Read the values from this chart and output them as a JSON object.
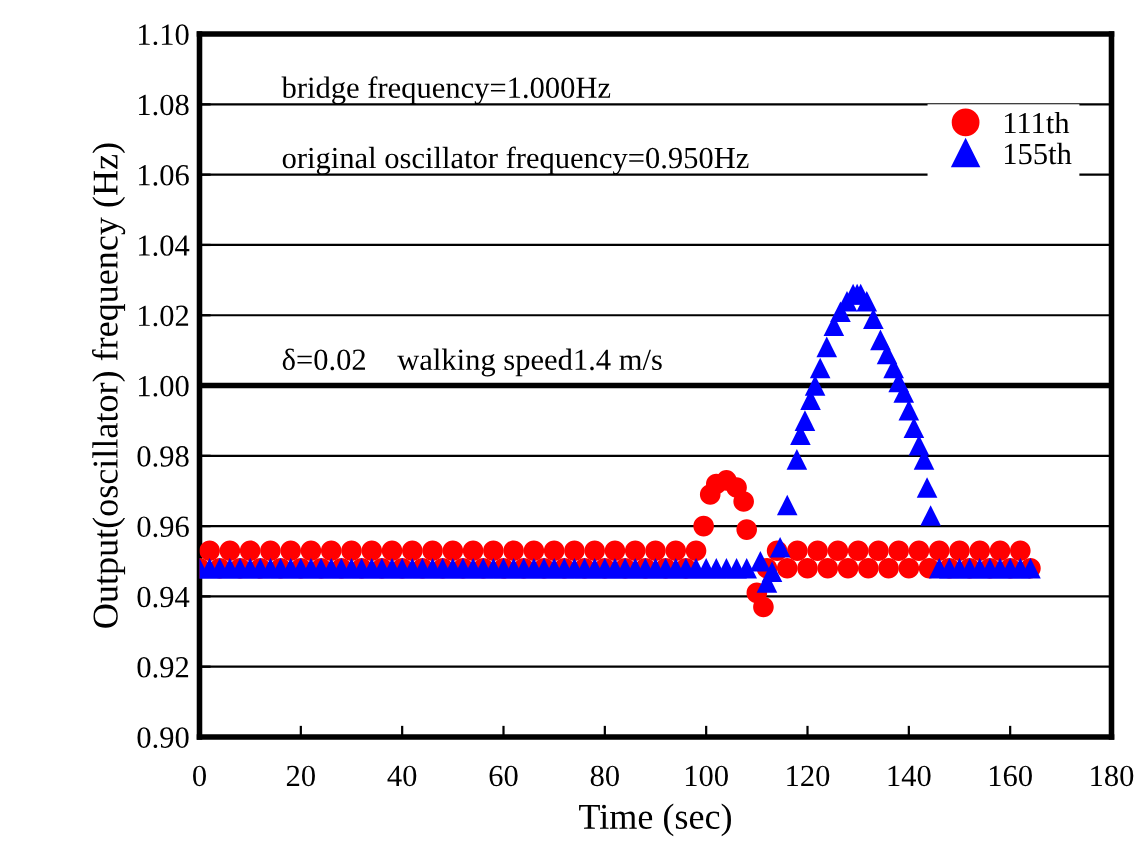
{
  "chart_data": {
    "type": "scatter",
    "xlabel": "Time (sec)",
    "ylabel": "Output(oscillator) frequency (Hz)",
    "xlim": [
      0,
      180
    ],
    "xticks": [
      0,
      20,
      40,
      60,
      80,
      100,
      120,
      140,
      160,
      180
    ],
    "ylim": [
      0.9,
      1.1
    ],
    "yticks": [
      {
        "value": 0.9,
        "label": "0.90"
      },
      {
        "value": 0.92,
        "label": "0.92"
      },
      {
        "value": 0.94,
        "label": "0.94"
      },
      {
        "value": 0.96,
        "label": "0.96"
      },
      {
        "value": 0.98,
        "label": "0.98"
      },
      {
        "value": 1.0,
        "label": "1.00"
      },
      {
        "value": 1.02,
        "label": "1.02"
      },
      {
        "value": 1.04,
        "label": "1.04"
      },
      {
        "value": 1.06,
        "label": "1.06"
      },
      {
        "value": 1.08,
        "label": "1.08"
      },
      {
        "value": 1.1,
        "label": "1.10"
      }
    ],
    "grid": "y",
    "legend": "top right",
    "ref_lines": [
      {
        "axis": "y",
        "value": 1.0,
        "color": "#000000"
      }
    ],
    "annotations": [
      "bridge frequency=1.000Hz",
      "original oscillator frequency=0.950Hz",
      "δ=0.02    walking speed1.4 m/s"
    ],
    "series": [
      {
        "name": "111th",
        "color": "#ff0000",
        "marker": "circle",
        "x": [
          0,
          2,
          4,
          6,
          8,
          10,
          12,
          14,
          16,
          18,
          20,
          22,
          24,
          26,
          28,
          30,
          32,
          34,
          36,
          38,
          40,
          42,
          44,
          46,
          48,
          50,
          52,
          54,
          56,
          58,
          60,
          62,
          64,
          66,
          68,
          70,
          72,
          74,
          76,
          78,
          80,
          82,
          84,
          86,
          88,
          90,
          92,
          94,
          96,
          98,
          99.5,
          100.8,
          102,
          104,
          106,
          107.4,
          108,
          110,
          111.3,
          112,
          114,
          116,
          118,
          120,
          122,
          124,
          126,
          128,
          130,
          132,
          134,
          136,
          138,
          140,
          142,
          144,
          146,
          148,
          150,
          152,
          154,
          156,
          158,
          160,
          162,
          164
        ],
        "values": [
          0.948,
          0.953,
          0.948,
          0.953,
          0.948,
          0.953,
          0.948,
          0.953,
          0.948,
          0.953,
          0.948,
          0.953,
          0.948,
          0.953,
          0.948,
          0.953,
          0.948,
          0.953,
          0.948,
          0.953,
          0.948,
          0.953,
          0.948,
          0.953,
          0.948,
          0.953,
          0.948,
          0.953,
          0.948,
          0.953,
          0.948,
          0.953,
          0.948,
          0.953,
          0.948,
          0.953,
          0.948,
          0.953,
          0.948,
          0.953,
          0.948,
          0.953,
          0.948,
          0.953,
          0.948,
          0.953,
          0.948,
          0.953,
          0.948,
          0.953,
          0.96,
          0.969,
          0.972,
          0.973,
          0.971,
          0.967,
          0.959,
          0.941,
          0.937,
          0.948,
          0.953,
          0.948,
          0.953,
          0.948,
          0.953,
          0.948,
          0.953,
          0.948,
          0.953,
          0.948,
          0.953,
          0.948,
          0.953,
          0.948,
          0.953,
          0.948,
          0.953,
          0.948,
          0.953,
          0.948,
          0.953,
          0.948,
          0.953,
          0.948,
          0.953,
          0.948
        ]
      },
      {
        "name": "155th",
        "color": "#0000ff",
        "marker": "triangle",
        "x": [
          0,
          2,
          4,
          6,
          8,
          10,
          12,
          14,
          16,
          18,
          20,
          22,
          24,
          26,
          28,
          30,
          32,
          34,
          36,
          38,
          40,
          42,
          44,
          46,
          48,
          50,
          52,
          54,
          56,
          58,
          60,
          62,
          64,
          66,
          68,
          70,
          72,
          74,
          76,
          78,
          80,
          82,
          84,
          86,
          88,
          90,
          92,
          94,
          96,
          98,
          100,
          102,
          104,
          106,
          108,
          110.7,
          112,
          113,
          114.6,
          116,
          117.9,
          118.6,
          119.5,
          120.6,
          121.5,
          122.5,
          123.8,
          125.2,
          126.5,
          127.8,
          129,
          129.8,
          130.5,
          131.7,
          133,
          134.4,
          135.7,
          137,
          138,
          139,
          140,
          141,
          142,
          143,
          143.6,
          144.3,
          146,
          148,
          150,
          152,
          154,
          156,
          158,
          160,
          162,
          164
        ],
        "values": [
          0.948,
          0.948,
          0.948,
          0.948,
          0.948,
          0.948,
          0.948,
          0.948,
          0.948,
          0.948,
          0.948,
          0.948,
          0.948,
          0.948,
          0.948,
          0.948,
          0.948,
          0.948,
          0.948,
          0.948,
          0.948,
          0.948,
          0.948,
          0.948,
          0.948,
          0.948,
          0.948,
          0.948,
          0.948,
          0.948,
          0.948,
          0.948,
          0.948,
          0.948,
          0.948,
          0.948,
          0.948,
          0.948,
          0.948,
          0.948,
          0.948,
          0.948,
          0.948,
          0.948,
          0.948,
          0.948,
          0.948,
          0.948,
          0.948,
          0.948,
          0.948,
          0.948,
          0.948,
          0.948,
          0.948,
          0.95,
          0.944,
          0.947,
          0.954,
          0.966,
          0.979,
          0.986,
          0.99,
          0.996,
          1.0,
          1.005,
          1.011,
          1.017,
          1.021,
          1.024,
          1.026,
          1.026,
          1.026,
          1.024,
          1.019,
          1.013,
          1.009,
          1.005,
          1.001,
          0.998,
          0.993,
          0.988,
          0.983,
          0.979,
          0.971,
          0.963,
          0.948,
          0.948,
          0.948,
          0.948,
          0.948,
          0.948,
          0.948,
          0.948,
          0.948,
          0.948
        ]
      }
    ]
  }
}
